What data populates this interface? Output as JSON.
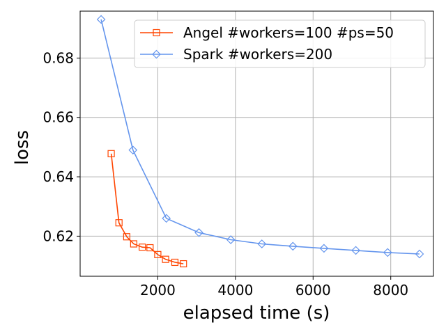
{
  "chart_data": {
    "type": "line",
    "xlabel": "elapsed time (s)",
    "ylabel": "loss",
    "xlim": [
      0,
      9100
    ],
    "ylim": [
      0.6065,
      0.6958
    ],
    "xticks": [
      2000,
      4000,
      6000,
      8000
    ],
    "xtick_labels": [
      "2000",
      "4000",
      "6000",
      "8000"
    ],
    "yticks": [
      0.62,
      0.64,
      0.66,
      0.68
    ],
    "ytick_labels": [
      "0.62",
      "0.64",
      "0.66",
      "0.68"
    ],
    "grid": true,
    "legend_position": "top-right",
    "series": [
      {
        "name": "Angel #workers=100 #ps=50",
        "color": "#ff4500",
        "marker": "square",
        "x": [
          800,
          1000,
          1200,
          1380,
          1600,
          1800,
          2000,
          2200,
          2440,
          2660
        ],
        "y": [
          0.6478,
          0.6245,
          0.6198,
          0.6174,
          0.6163,
          0.6161,
          0.6138,
          0.6122,
          0.6112,
          0.6107
        ]
      },
      {
        "name": "Spark #workers=200",
        "color": "#6495ed",
        "marker": "diamond",
        "x": [
          540,
          1360,
          2220,
          3060,
          3880,
          4680,
          5480,
          6280,
          7100,
          7920,
          8740
        ],
        "y": [
          0.693,
          0.649,
          0.626,
          0.6212,
          0.6188,
          0.6174,
          0.6166,
          0.6159,
          0.6152,
          0.6145,
          0.614
        ]
      }
    ]
  }
}
